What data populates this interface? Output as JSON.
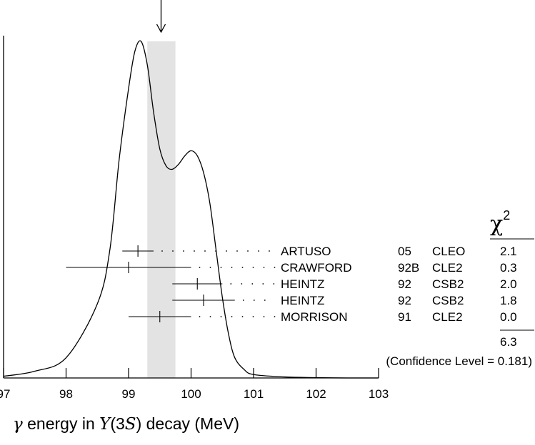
{
  "chart_data": {
    "type": "ideogram",
    "xlabel": {
      "symbol": "γ",
      "text1": " energy in ",
      "upsilon": "Υ",
      "state_open": "(3",
      "state_s": "S",
      "state_close": ")",
      "text2": " decay (MeV)"
    },
    "xlim": [
      97,
      103
    ],
    "ticks": [
      "97",
      "98",
      "99",
      "100",
      "101",
      "102",
      "103"
    ],
    "weighted_average": 99.52,
    "scale_band": [
      99.3,
      99.75
    ],
    "chi2_header": "χ",
    "chi2_header_sup": "2",
    "measurements": [
      {
        "author": "ARTUSO",
        "year": "05",
        "experiment": "CLEO",
        "chi2": "2.1",
        "value": 99.15,
        "low": 98.9,
        "high": 99.4
      },
      {
        "author": "CRAWFORD",
        "year": "92B",
        "experiment": "CLE2",
        "chi2": "0.3",
        "value": 99.0,
        "low": 98.0,
        "high": 100.0
      },
      {
        "author": "HEINTZ",
        "year": "92",
        "experiment": "CSB2",
        "chi2": "2.0",
        "value": 100.1,
        "low": 99.7,
        "high": 100.5
      },
      {
        "author": "HEINTZ",
        "year": "92",
        "experiment": "CSB2",
        "chi2": "1.8",
        "value": 100.2,
        "low": 99.7,
        "high": 100.7
      },
      {
        "author": "MORRISON",
        "year": "91",
        "experiment": "CLE2",
        "chi2": "0.0",
        "value": 99.5,
        "low": 99.0,
        "high": 100.0
      }
    ],
    "chi2_total": "6.3",
    "confidence_level": "(Confidence Level = 0.181)",
    "ideogram_curve": [
      [
        97.0,
        0.005
      ],
      [
        97.5,
        0.02
      ],
      [
        98.0,
        0.06
      ],
      [
        98.5,
        0.22
      ],
      [
        98.7,
        0.38
      ],
      [
        98.85,
        0.65
      ],
      [
        99.0,
        0.86
      ],
      [
        99.1,
        0.97
      ],
      [
        99.2,
        1.0
      ],
      [
        99.3,
        0.93
      ],
      [
        99.4,
        0.79
      ],
      [
        99.5,
        0.68
      ],
      [
        99.6,
        0.63
      ],
      [
        99.7,
        0.62
      ],
      [
        99.8,
        0.635
      ],
      [
        99.9,
        0.66
      ],
      [
        100.0,
        0.675
      ],
      [
        100.1,
        0.66
      ],
      [
        100.2,
        0.61
      ],
      [
        100.3,
        0.52
      ],
      [
        100.4,
        0.38
      ],
      [
        100.5,
        0.24
      ],
      [
        100.6,
        0.13
      ],
      [
        100.7,
        0.06
      ],
      [
        100.85,
        0.025
      ],
      [
        101.0,
        0.01
      ],
      [
        101.5,
        0.003
      ],
      [
        102.0,
        0.001
      ],
      [
        102.5,
        0.0
      ],
      [
        103.0,
        0.0
      ]
    ]
  }
}
